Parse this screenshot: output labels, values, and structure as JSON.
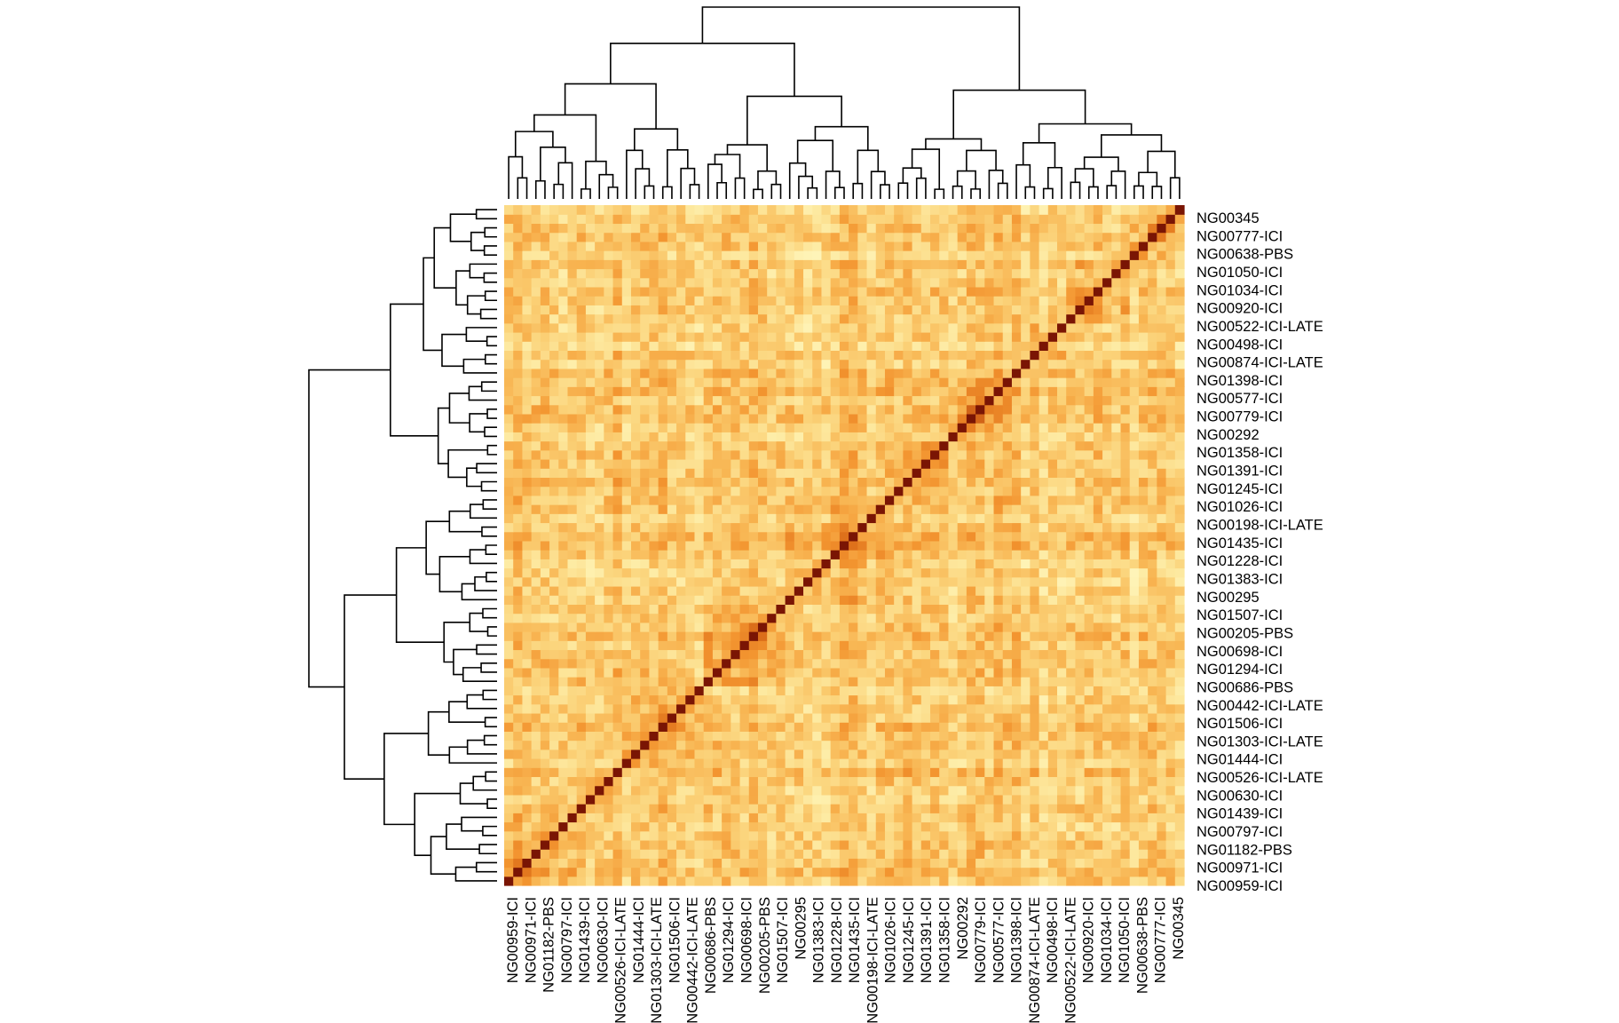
{
  "chart_data": {
    "type": "heatmap",
    "title": "",
    "xlabel": "",
    "ylabel": "",
    "row_labels_shown": [
      "NG00345",
      "NG00777-ICI",
      "NG00638-PBS",
      "NG01050-ICI",
      "NG01034-ICI",
      "NG00920-ICI",
      "NG00522-ICI-LATE",
      "NG00498-ICI",
      "NG00874-ICI-LATE",
      "NG01398-ICI",
      "NG00577-ICI",
      "NG00779-ICI",
      "NG00292",
      "NG01358-ICI",
      "NG01391-ICI",
      "NG01245-ICI",
      "NG01026-ICI",
      "NG00198-ICI-LATE",
      "NG01435-ICI",
      "NG01228-ICI",
      "NG01383-ICI",
      "NG00295",
      "NG01507-ICI",
      "NG00205-PBS",
      "NG00698-ICI",
      "NG01294-ICI",
      "NG00686-PBS",
      "NG00442-ICI-LATE",
      "NG01506-ICI",
      "NG01303-ICI-LATE",
      "NG01444-ICI",
      "NG00526-ICI-LATE",
      "NG00630-ICI",
      "NG01439-ICI",
      "NG00797-ICI",
      "NG01182-PBS",
      "NG00971-ICI",
      "NG00959-ICI"
    ],
    "column_labels_shown": [
      "NG00959-ICI",
      "NG00971-ICI",
      "NG01182-PBS",
      "NG00797-ICI",
      "NG01439-ICI",
      "NG00630-ICI",
      "NG00526-ICI-LATE",
      "NG01444-ICI",
      "NG01303-ICI-LATE",
      "NG01506-ICI",
      "NG00442-ICI-LATE",
      "NG00686-PBS",
      "NG01294-ICI",
      "NG00698-ICI",
      "NG00205-PBS",
      "NG01507-ICI",
      "NG00295",
      "NG01383-ICI",
      "NG01228-ICI",
      "NG01435-ICI",
      "NG00198-ICI-LATE",
      "NG01026-ICI",
      "NG01245-ICI",
      "NG01391-ICI",
      "NG01358-ICI",
      "NG00292",
      "NG00779-ICI",
      "NG00577-ICI",
      "NG01398-ICI",
      "NG00874-ICI-LATE",
      "NG00498-ICI",
      "NG00522-ICI-LATE",
      "NG00920-ICI",
      "NG01034-ICI",
      "NG01050-ICI",
      "NG00638-PBS",
      "NG00777-ICI",
      "NG00345"
    ],
    "n_samples": 75,
    "diagonal": "anti-diagonal from bottom-left to top-right (self-similarity, darkest red)",
    "colormap": [
      "#fff9c2",
      "#fde9a0",
      "#fbd37a",
      "#f8b552",
      "#f39530",
      "#e0731c",
      "#b7460f",
      "#8c1d06"
    ],
    "block_clusters": [
      [
        0,
        8
      ],
      [
        8,
        13
      ],
      [
        13,
        22
      ],
      [
        22,
        31
      ],
      [
        31,
        43
      ],
      [
        43,
        49
      ],
      [
        49,
        56
      ],
      [
        56,
        62
      ],
      [
        62,
        69
      ],
      [
        69,
        75
      ]
    ],
    "legend": "none",
    "dendrograms": [
      "top (columns)",
      "left (rows)"
    ]
  }
}
